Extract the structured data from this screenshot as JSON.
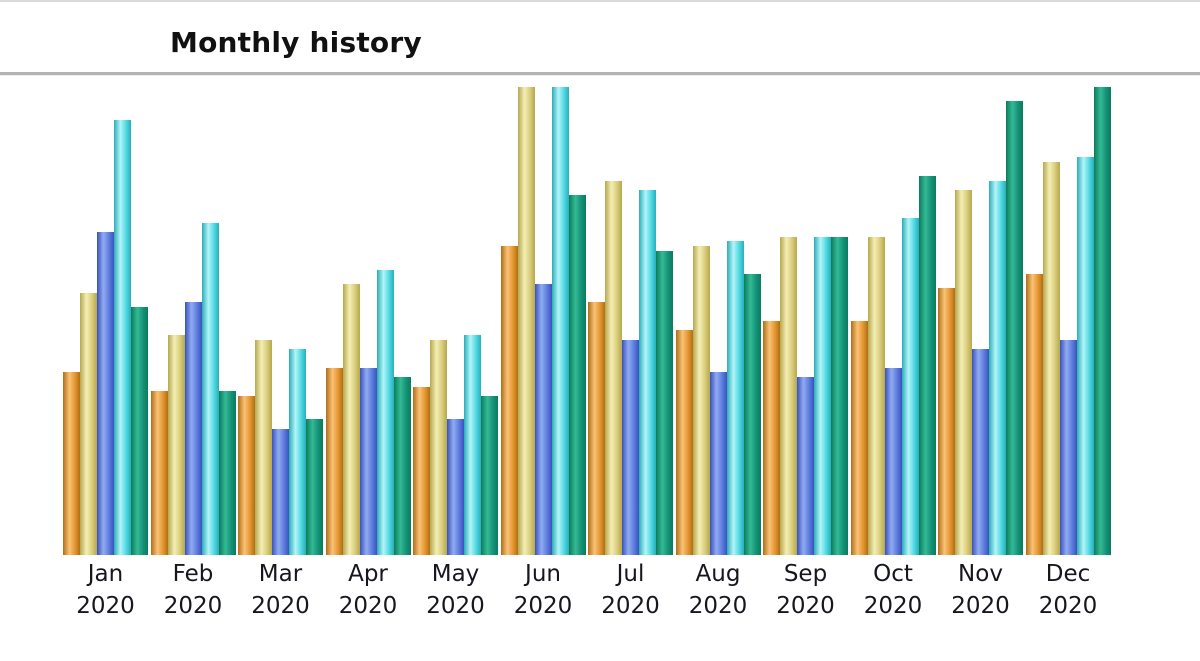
{
  "header": {
    "title": "Monthly history"
  },
  "chart_data": {
    "type": "bar",
    "title": "Monthly history",
    "subtitle": "",
    "xlabel": "",
    "ylabel": "",
    "year": "2020",
    "categories": [
      "Jan",
      "Feb",
      "Mar",
      "Apr",
      "May",
      "Jun",
      "Jul",
      "Aug",
      "Sep",
      "Oct",
      "Nov",
      "Dec"
    ],
    "x_tick_labels": [
      "Jan 2020",
      "Feb 2020",
      "Mar 2020",
      "Apr 2020",
      "May 2020",
      "Jun 2020",
      "Jul 2020",
      "Aug 2020",
      "Sep 2020",
      "Oct 2020",
      "Nov 2020",
      "Dec 2020"
    ],
    "series": [
      {
        "name": "orange-series",
        "colors": {
          "dark": "#b06e14",
          "light": "#f9c277",
          "mid": "#e3942f"
        },
        "values": [
          39,
          35,
          34,
          40,
          36,
          66,
          54,
          48,
          50,
          50,
          57,
          60
        ]
      },
      {
        "name": "khaki-series",
        "colors": {
          "dark": "#b5a84e",
          "light": "#f4eeb4",
          "mid": "#d8cb7a"
        },
        "values": [
          56,
          47,
          46,
          58,
          46,
          100,
          80,
          66,
          68,
          68,
          78,
          84
        ]
      },
      {
        "name": "blue-series",
        "colors": {
          "dark": "#3952bd",
          "light": "#91abf2",
          "mid": "#5c7bdc"
        },
        "values": [
          69,
          54,
          27,
          40,
          29,
          58,
          46,
          39,
          38,
          40,
          44,
          46
        ]
      },
      {
        "name": "cyan-series",
        "colors": {
          "dark": "#2aadb8",
          "light": "#b4f5f9",
          "mid": "#4fd8e2"
        },
        "values": [
          93,
          71,
          44,
          61,
          47,
          100,
          78,
          67,
          68,
          72,
          80,
          85
        ]
      },
      {
        "name": "teal-series",
        "colors": {
          "dark": "#0b7c5c",
          "light": "#33ba94",
          "mid": "#159178"
        },
        "values": [
          53,
          35,
          29,
          38,
          34,
          77,
          65,
          60,
          68,
          81,
          97,
          100
        ]
      }
    ],
    "ylim": [
      0,
      100
    ],
    "grid": false,
    "y_axis_visible": false,
    "x_axis_line_visible": false,
    "legend": {
      "visible": false
    },
    "bar_style": "cylindrical-gradient"
  },
  "layout_colors": {
    "background": "#ffffff",
    "divider": "#b3b3b3",
    "label_color": "#16161e",
    "title_color": "#111111"
  }
}
